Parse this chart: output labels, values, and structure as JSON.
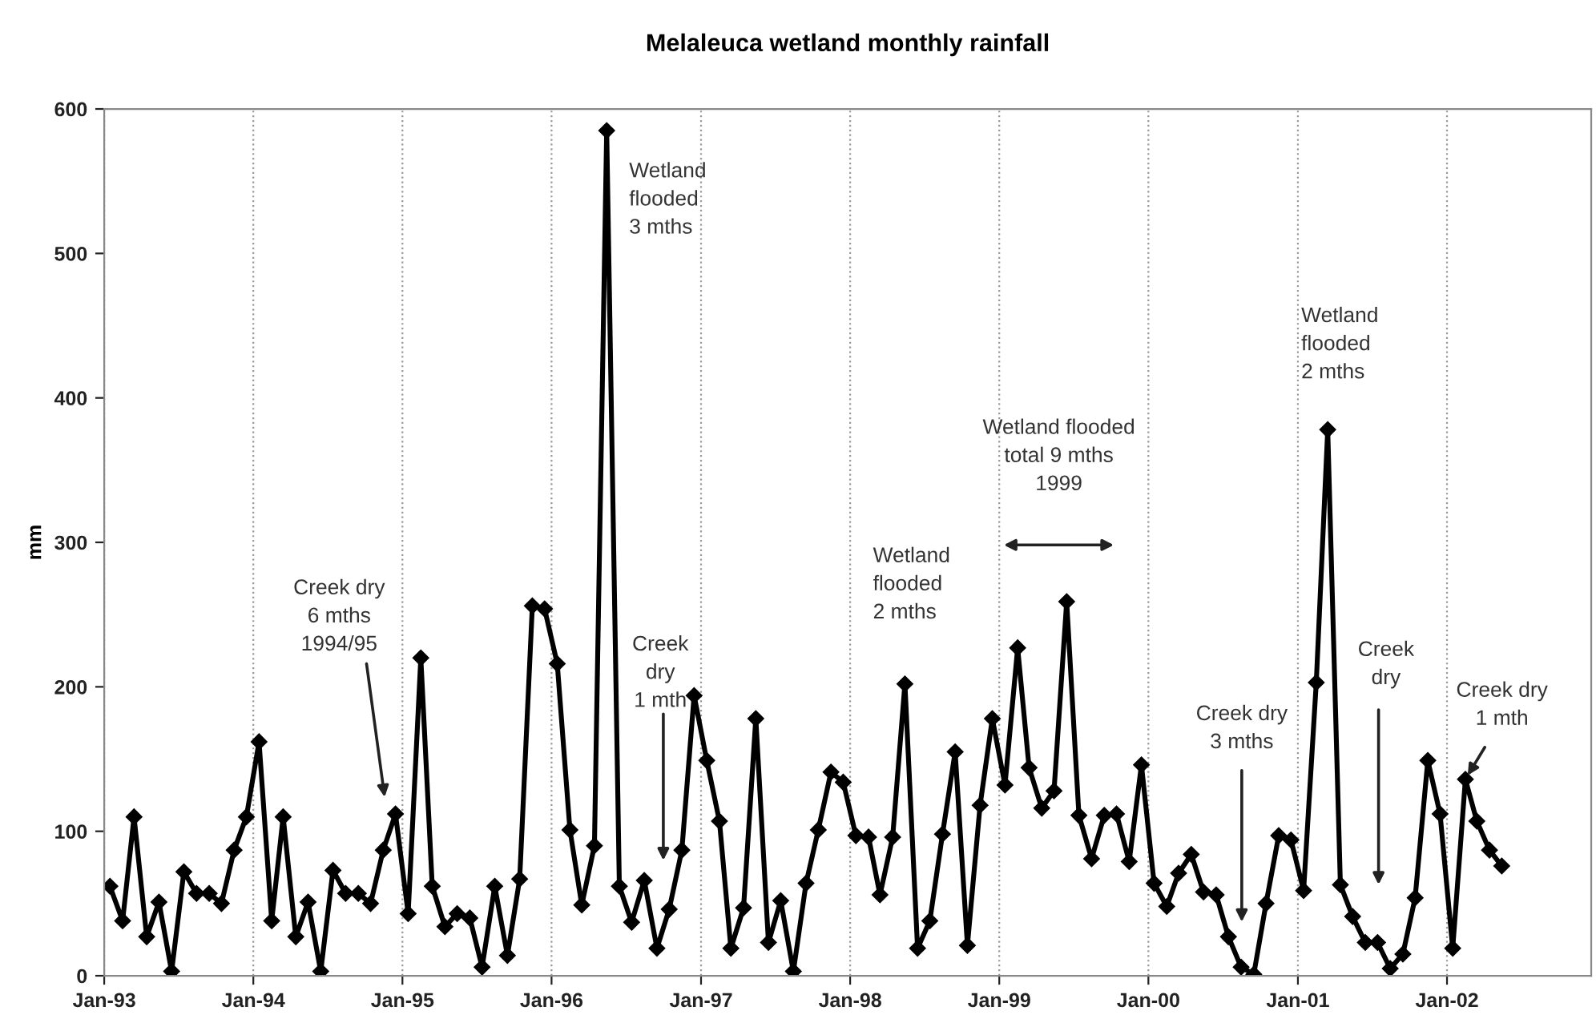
{
  "chart_data": {
    "type": "line",
    "title": "Melaleuca wetland monthly rainfall",
    "ylabel": "mm",
    "x": [
      "1993-01-15",
      "1993-02-15",
      "1993-03-15",
      "1993-04-15",
      "1993-05-15",
      "1993-06-15",
      "1993-07-15",
      "1993-08-15",
      "1993-09-15",
      "1993-10-15",
      "1993-11-15",
      "1993-12-15",
      "1994-01-15",
      "1994-02-15",
      "1994-03-15",
      "1994-04-15",
      "1994-05-15",
      "1994-06-15",
      "1994-07-15",
      "1994-08-15",
      "1994-09-15",
      "1994-10-15",
      "1994-11-15",
      "1994-12-15",
      "1995-01-15",
      "1995-02-15",
      "1995-03-15",
      "1995-04-15",
      "1995-05-15",
      "1995-06-15",
      "1995-07-15",
      "1995-08-15",
      "1995-09-15",
      "1995-10-15",
      "1995-11-15",
      "1995-12-15",
      "1996-01-15",
      "1996-02-15",
      "1996-03-15",
      "1996-04-15",
      "1996-05-15",
      "1996-06-15",
      "1996-07-15",
      "1996-08-15",
      "1996-09-15",
      "1996-10-15",
      "1996-11-15",
      "1996-12-15",
      "1997-01-15",
      "1997-02-15",
      "1997-03-15",
      "1997-04-15",
      "1997-05-15",
      "1997-06-15",
      "1997-07-15",
      "1997-08-15",
      "1997-09-15",
      "1997-10-15",
      "1997-11-15",
      "1997-12-15",
      "1998-01-15",
      "1998-02-15",
      "1998-03-15",
      "1998-04-15",
      "1998-05-15",
      "1998-06-15",
      "1998-07-15",
      "1998-08-15",
      "1998-09-15",
      "1998-10-15",
      "1998-11-15",
      "1998-12-15",
      "1999-01-15",
      "1999-02-15",
      "1999-03-15",
      "1999-04-15",
      "1999-05-15",
      "1999-06-15",
      "1999-07-15",
      "1999-08-15",
      "1999-09-15",
      "1999-10-15",
      "1999-11-15",
      "1999-12-15",
      "2000-01-15",
      "2000-02-15",
      "2000-03-15",
      "2000-04-15",
      "2000-05-15",
      "2000-06-15",
      "2000-07-15",
      "2000-08-15",
      "2000-09-15",
      "2000-10-15",
      "2000-11-15",
      "2000-12-15",
      "2001-01-15",
      "2001-02-15",
      "2001-03-15",
      "2001-04-15",
      "2001-05-15",
      "2001-06-15",
      "2001-07-15",
      "2001-08-15",
      "2001-09-15",
      "2001-10-15",
      "2001-11-15",
      "2001-12-15",
      "2002-01-15",
      "2002-02-15",
      "2002-03-15",
      "2002-04-15",
      "2002-05-15"
    ],
    "series": [
      {
        "color": "#000000",
        "values": [
          62,
          38,
          110,
          27,
          51,
          3,
          72,
          57,
          57,
          50,
          87,
          110,
          162,
          38,
          110,
          27,
          51,
          3,
          73,
          57,
          57,
          50,
          87,
          112,
          43,
          220,
          62,
          34,
          43,
          40,
          6,
          62,
          14,
          67,
          256,
          254,
          216,
          101,
          49,
          90,
          585,
          62,
          37,
          66,
          19,
          46,
          87,
          194,
          149,
          107,
          19,
          47,
          178,
          23,
          52,
          3,
          64,
          101,
          141,
          134,
          97,
          96,
          56,
          96,
          202,
          19,
          38,
          98,
          155,
          21,
          118,
          178,
          132,
          227,
          144,
          116,
          128,
          259,
          111,
          81,
          111,
          112,
          79,
          146,
          64,
          48,
          71,
          84,
          58,
          56,
          27,
          6,
          1,
          50,
          97,
          94,
          59,
          203,
          378,
          63,
          41,
          23,
          23,
          5,
          15,
          54,
          149,
          112,
          19,
          136,
          107,
          87,
          76
        ]
      }
    ],
    "marker": "diamond",
    "line_style": "solid",
    "grid": "x",
    "xlim": [
      "1993-01-01",
      "2002-12-20"
    ],
    "xticks": [
      {
        "value": "1993-01-01",
        "label": "Jan-93"
      },
      {
        "value": "1994-01-01",
        "label": "Jan-94"
      },
      {
        "value": "1995-01-01",
        "label": "Jan-95"
      },
      {
        "value": "1996-01-01",
        "label": "Jan-96"
      },
      {
        "value": "1997-01-01",
        "label": "Jan-97"
      },
      {
        "value": "1998-01-01",
        "label": "Jan-98"
      },
      {
        "value": "1999-01-01",
        "label": "Jan-99"
      },
      {
        "value": "2000-01-01",
        "label": "Jan-00"
      },
      {
        "value": "2001-01-01",
        "label": "Jan-01"
      },
      {
        "value": "2002-01-01",
        "label": "Jan-02"
      }
    ],
    "ylim": [
      0,
      600
    ],
    "yticks": [
      0,
      100,
      200,
      300,
      400,
      500,
      600
    ],
    "annotations": [
      "Creek dry\n6 mths\n1994/95",
      "Wetland\nflooded\n3 mths",
      "Creek\ndry\n1 mth",
      "Wetland\nflooded\n2 mths",
      "Wetland flooded\ntotal 9 mths\n1999",
      "Wetland\nflooded\n2 mths",
      "Creek dry\n3 mths",
      "Creek\ndry",
      {
        "text": "Creek dry\n1 mth",
        "x": "2002-02-15",
        "y": 136
      }
    ]
  }
}
